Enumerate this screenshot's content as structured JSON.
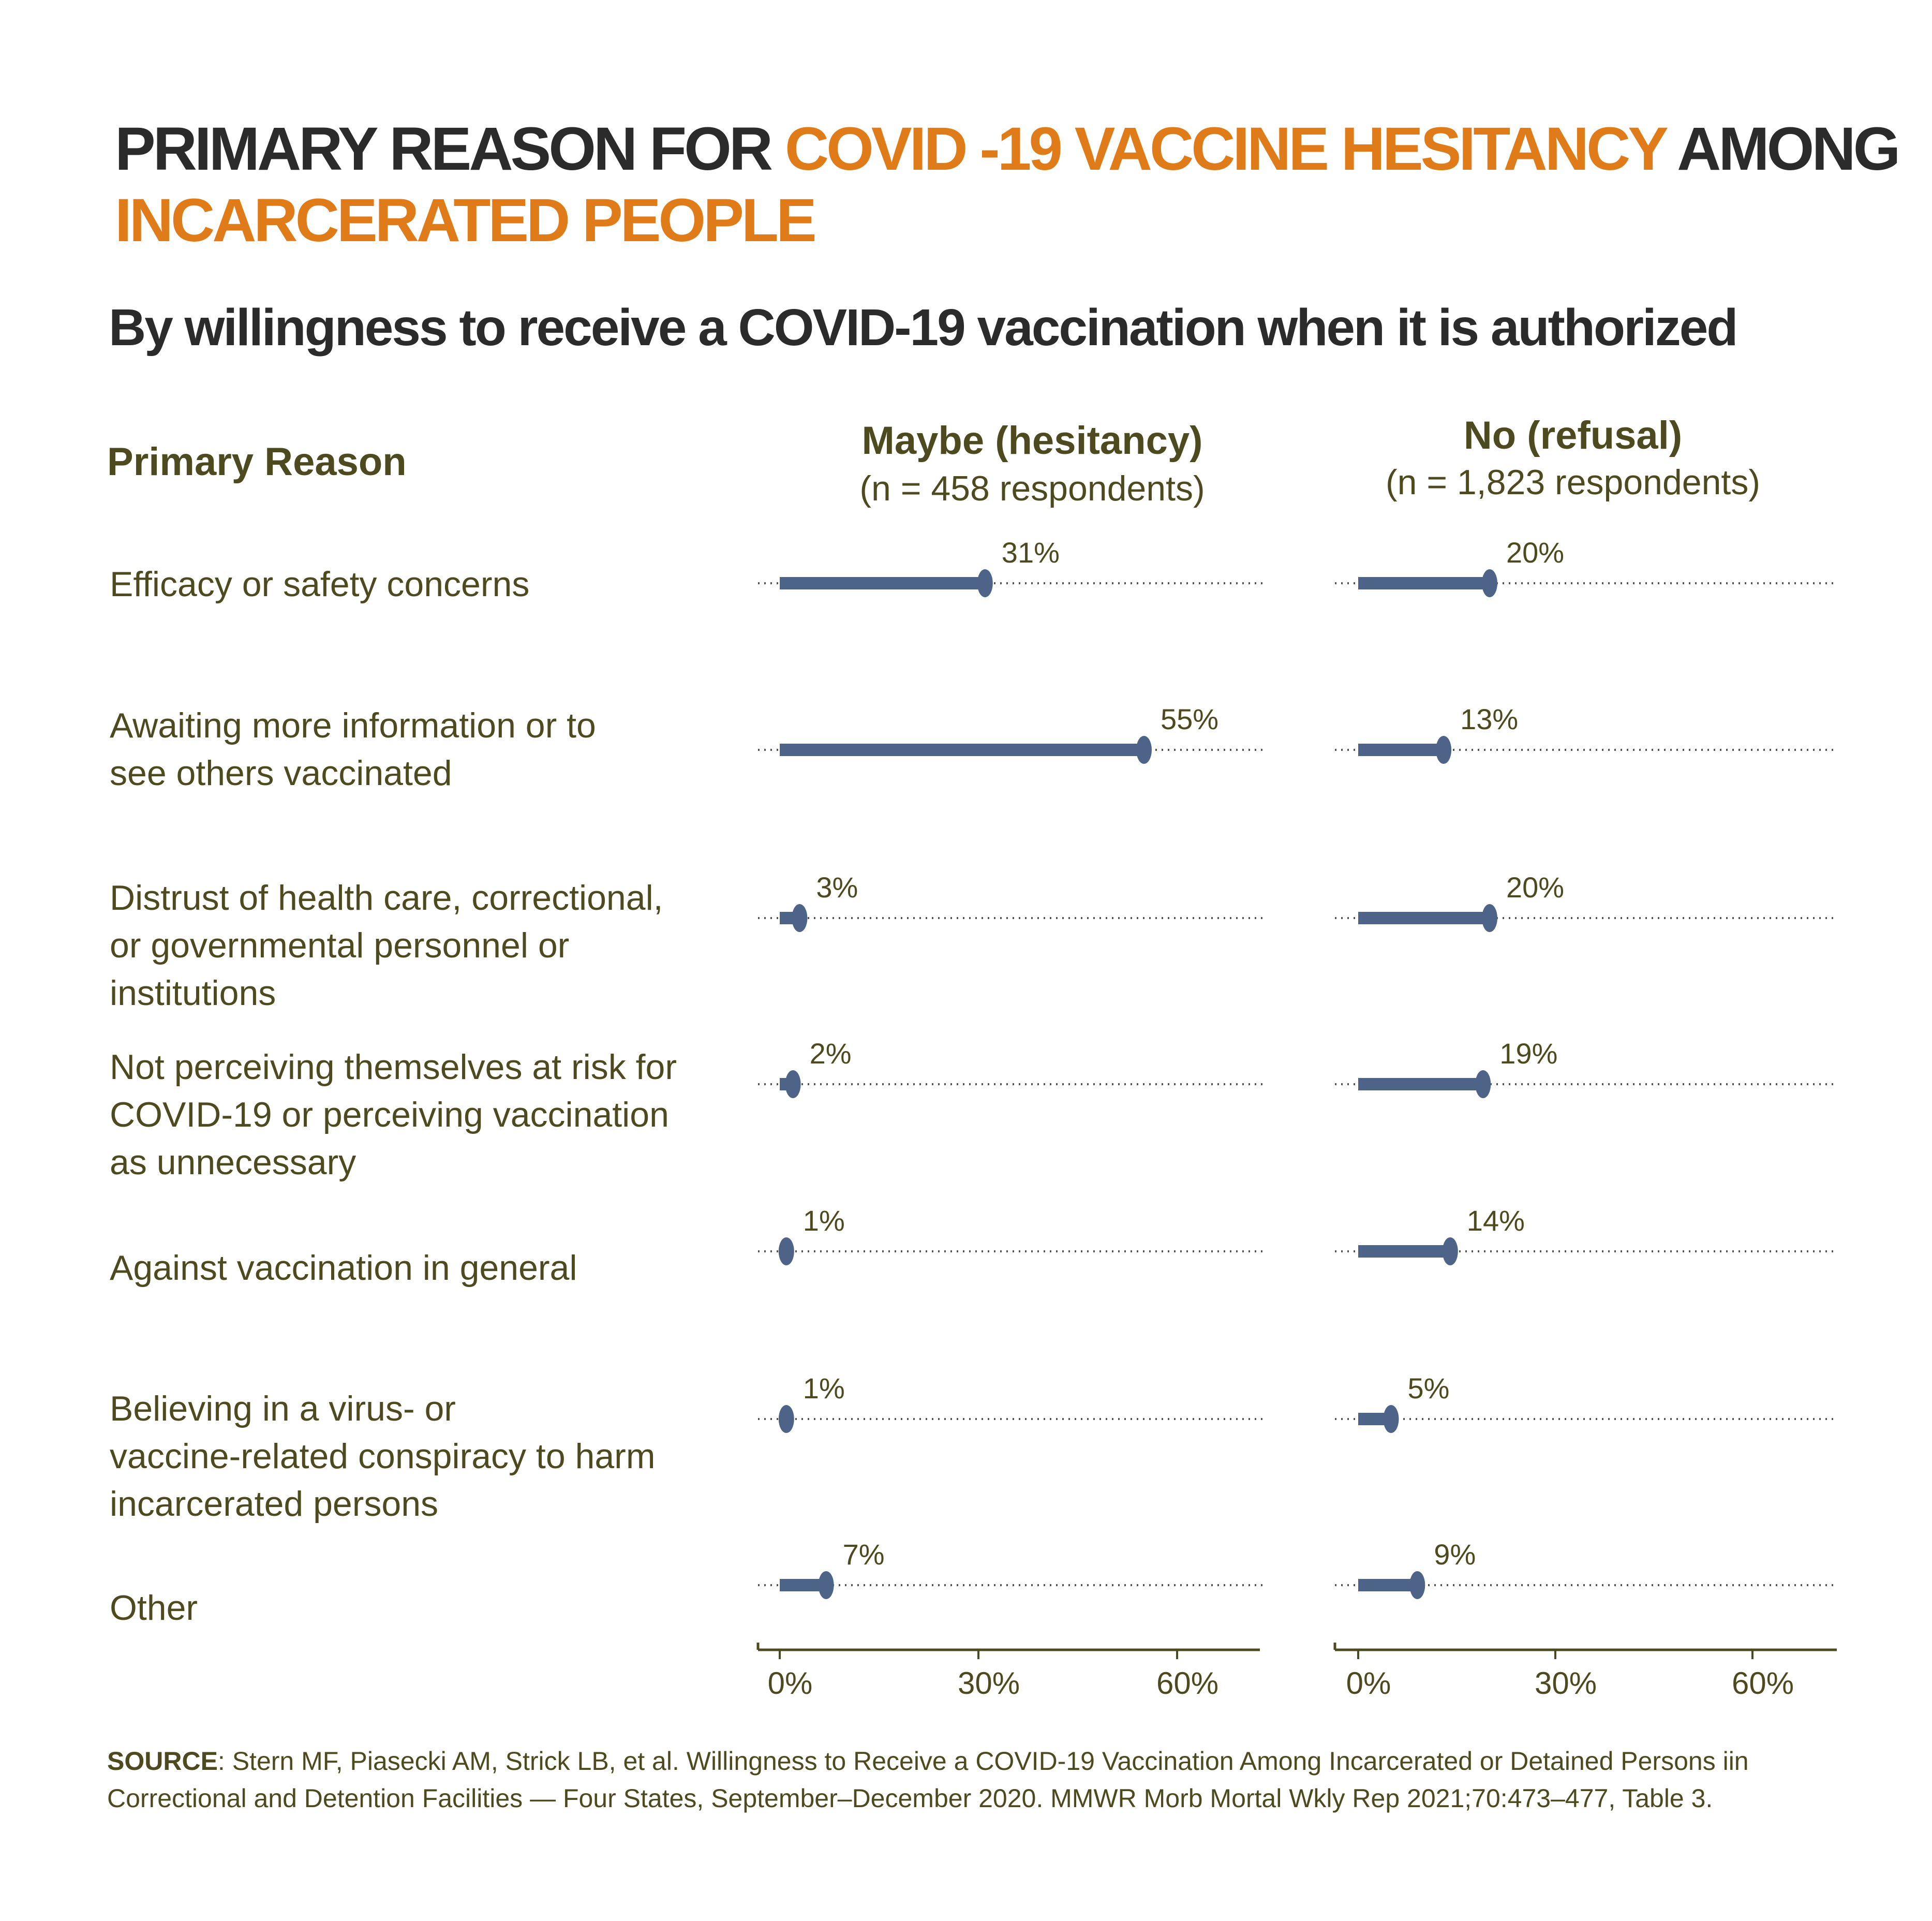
{
  "colors": {
    "title_dark": "#2b2b2b",
    "accent_orange": "#e07b1a",
    "olive_text": "#4c4a1e",
    "bar": "#4d6388",
    "axis": "#4c4a1e",
    "dotted": "#555555"
  },
  "title": {
    "part1": "PRIMARY REASON FOR ",
    "part2": "COVID -19 VACCINE HESITANCY",
    "part3": " AMONG",
    "line2": "INCARCERATED PEOPLE"
  },
  "subtitle": "By willingness to receive a COVID-19 vaccination when it is authorized",
  "row_header": "Primary Reason",
  "chart_data": {
    "type": "bar",
    "orientation": "horizontal",
    "categories": [
      [
        "Efficacy or safety concerns"
      ],
      [
        "Awaiting more information or to",
        "see others vaccinated"
      ],
      [
        "Distrust of health care, correctional,",
        "or governmental personnel or",
        "institutions"
      ],
      [
        "Not perceiving themselves at risk for",
        "COVID-19 or perceiving vaccination",
        "as unnecessary"
      ],
      [
        "Against vaccination in general"
      ],
      [
        "Believing in a virus- or",
        "vaccine-related conspiracy to harm",
        "incarcerated persons"
      ],
      [
        "Other"
      ]
    ],
    "series": [
      {
        "name": "Maybe (hesitancy)",
        "subtitle": "(n = 458 respondents)",
        "values": [
          31,
          55,
          3,
          2,
          1,
          1,
          7
        ],
        "labels": [
          "31%",
          "55%",
          "3%",
          "2%",
          "1%",
          "1%",
          "7%"
        ]
      },
      {
        "name": "No (refusal)",
        "subtitle": "(n = 1,823 respondents)",
        "values": [
          20,
          13,
          20,
          19,
          14,
          5,
          9
        ],
        "labels": [
          "20%",
          "13%",
          "20%",
          "19%",
          "14%",
          "5%",
          "9%"
        ]
      }
    ],
    "xlim": [
      0,
      70
    ],
    "xticks": [
      0,
      30,
      60
    ],
    "xtick_labels": [
      "0%",
      "30%",
      "60%"
    ],
    "grid": "dotted row lines"
  },
  "source": {
    "label": "SOURCE",
    "text": ": Stern MF, Piasecki AM, Strick LB, et al. Willingness to Receive a COVID-19 Vaccination Among Incarcerated or Detained Persons iin",
    "line2": "Correctional and Detention Facilities — Four States, September–December 2020. MMWR Morb Mortal Wkly Rep 2021;70:473–477, Table 3."
  }
}
